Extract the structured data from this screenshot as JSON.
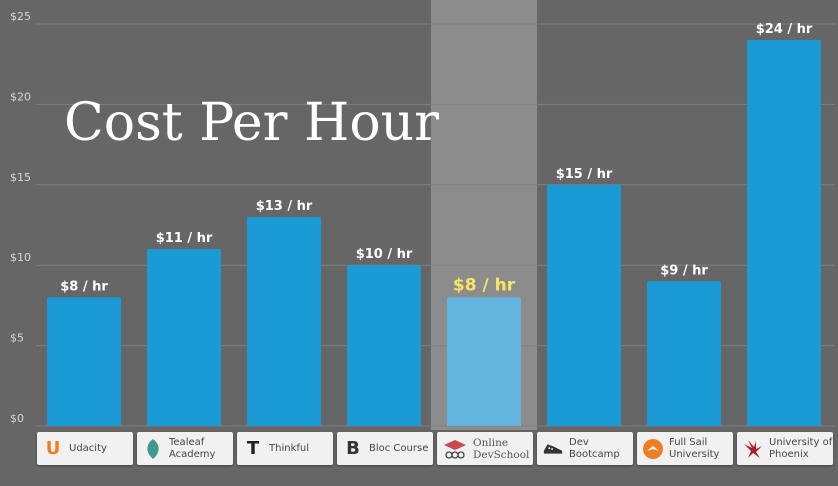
{
  "chart_data": {
    "type": "bar",
    "title": "Cost Per Hour",
    "categories": [
      "Udacity",
      "Tealeaf Academy",
      "Thinkful",
      "Bloc Course",
      "Online DevSchool",
      "Dev Bootcamp",
      "Full Sail University",
      "University of Phoenix"
    ],
    "values": [
      8,
      11,
      13,
      10,
      8,
      15,
      9,
      24
    ],
    "data_labels": [
      "$8 / hr",
      "$11 / hr",
      "$13 / hr",
      "$10 / hr",
      "$8 / hr",
      "$15 / hr",
      "$9 / hr",
      "$24 / hr"
    ],
    "highlighted_category": "Online DevSchool",
    "y_ticks": [
      "$0",
      "$5",
      "$10",
      "$15",
      "$20",
      "$25"
    ],
    "ylim": [
      0,
      25
    ],
    "grid": true,
    "colors": {
      "background": "#666666",
      "bar": "#1a9bd6",
      "bar_highlight": "#63b5e0",
      "highlight_band": "#8c8c8c",
      "highlight_label": "#f5e663",
      "gridline": "#808080"
    }
  },
  "logos": [
    {
      "icon": "udacity-u-icon",
      "glyph": "U",
      "color": "#f07d23"
    },
    {
      "icon": "tealeaf-leaf-icon",
      "glyph": "",
      "color": "#3f9a92"
    },
    {
      "icon": "thinkful-t-icon",
      "glyph": "T",
      "color": "#222222"
    },
    {
      "icon": "bloc-b-icon",
      "glyph": "B",
      "color": "#333333"
    },
    {
      "icon": "devschool-mortarboard-icon",
      "glyph": "",
      "color": "#c94a4a"
    },
    {
      "icon": "dev-bootcamp-shoe-icon",
      "glyph": "",
      "color": "#333333"
    },
    {
      "icon": "full-sail-circle-icon",
      "glyph": "",
      "color": "#f07d23"
    },
    {
      "icon": "phoenix-bird-icon",
      "glyph": "",
      "color": "#a8232a"
    }
  ]
}
